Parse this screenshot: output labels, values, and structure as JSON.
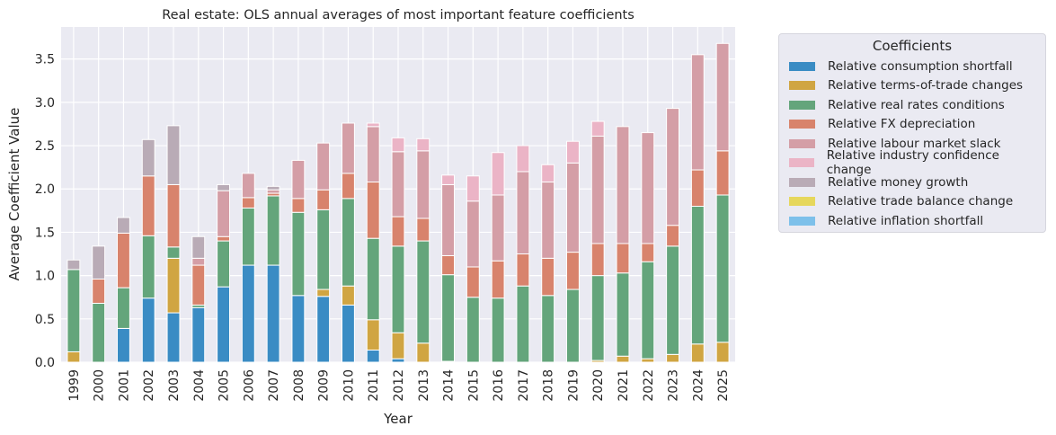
{
  "chart_data": {
    "type": "bar",
    "stacked": true,
    "title": "Real estate: OLS annual averages of most important feature coefficients",
    "xlabel": "Year",
    "ylabel": "Average Coefficient Value",
    "ylim": [
      0,
      3.87
    ],
    "yticks": [
      "0.0",
      "0.5",
      "1.0",
      "1.5",
      "2.0",
      "2.5",
      "3.0",
      "3.5"
    ],
    "grid": true,
    "legend_title": "Coefficients",
    "legend_placement": "outside-top-right",
    "categories": [
      "1999",
      "2000",
      "2001",
      "2002",
      "2003",
      "2004",
      "2005",
      "2006",
      "2007",
      "2008",
      "2009",
      "2010",
      "2011",
      "2012",
      "2013",
      "2014",
      "2015",
      "2016",
      "2017",
      "2018",
      "2019",
      "2020",
      "2021",
      "2022",
      "2023",
      "2024",
      "2025"
    ],
    "series": [
      {
        "name": "Relative consumption shortfall",
        "color": "#3a8cc4",
        "values": [
          0,
          0,
          0.39,
          0.74,
          0.57,
          0.63,
          0.87,
          1.12,
          1.12,
          0.77,
          0.76,
          0.66,
          0.14,
          0.04,
          0,
          0,
          0,
          0,
          0,
          0,
          0,
          0,
          0,
          0,
          0,
          0,
          0
        ]
      },
      {
        "name": "Relative terms-of-trade changes",
        "color": "#d0a542",
        "values": [
          0.12,
          0,
          0,
          0,
          0.63,
          0,
          0,
          0,
          0,
          0,
          0.08,
          0.22,
          0.35,
          0.3,
          0.22,
          0.01,
          0,
          0,
          0,
          0,
          0,
          0.02,
          0.07,
          0.04,
          0.09,
          0.21,
          0.23
        ]
      },
      {
        "name": "Relative real rates conditions",
        "color": "#64a57b",
        "values": [
          0.95,
          0.68,
          0.47,
          0.72,
          0.13,
          0.03,
          0.53,
          0.66,
          0.8,
          0.96,
          0.92,
          1.01,
          0.94,
          1.0,
          1.18,
          1.0,
          0.75,
          0.74,
          0.88,
          0.77,
          0.84,
          0.98,
          0.96,
          1.12,
          1.25,
          1.59,
          1.7
        ]
      },
      {
        "name": "Relative FX depreciation",
        "color": "#d8836c",
        "values": [
          0,
          0.28,
          0.63,
          0.69,
          0.72,
          0.46,
          0.05,
          0.12,
          0.03,
          0.16,
          0.23,
          0.29,
          0.65,
          0.34,
          0.26,
          0.22,
          0.35,
          0.43,
          0.37,
          0.43,
          0.43,
          0.37,
          0.34,
          0.21,
          0.24,
          0.42,
          0.51
        ]
      },
      {
        "name": "Relative labour market slack",
        "color": "#d49ea6",
        "values": [
          0,
          0,
          0,
          0,
          0,
          0.08,
          0.53,
          0.28,
          0.04,
          0.44,
          0.54,
          0.58,
          0.64,
          0.75,
          0.78,
          0.82,
          0.76,
          0.76,
          0.95,
          0.88,
          1.03,
          1.24,
          1.35,
          1.28,
          1.35,
          1.33,
          1.24
        ]
      },
      {
        "name": "Relative industry confidence change",
        "color": "#ebb4c6",
        "values": [
          0,
          0,
          0,
          0,
          0,
          0,
          0,
          0,
          0,
          0,
          0,
          0,
          0.04,
          0.16,
          0.14,
          0.11,
          0.29,
          0.49,
          0.3,
          0.2,
          0.25,
          0.17,
          0,
          0,
          0,
          0,
          0
        ]
      },
      {
        "name": "Relative money growth",
        "color": "#b9abb6",
        "values": [
          0.11,
          0.38,
          0.18,
          0.42,
          0.68,
          0.25,
          0.07,
          0,
          0.04,
          0,
          0,
          0,
          0,
          0,
          0,
          0,
          0,
          0,
          0,
          0,
          0,
          0,
          0,
          0,
          0,
          0,
          0
        ]
      },
      {
        "name": "Relative trade balance change",
        "color": "#e6d75c",
        "values": [
          0,
          0,
          0,
          0,
          0,
          0,
          0,
          0,
          0,
          0,
          0,
          0,
          0,
          0,
          0,
          0,
          0,
          0,
          0,
          0,
          0,
          0,
          0,
          0,
          0,
          0,
          0
        ]
      },
      {
        "name": "Relative inflation shortfall",
        "color": "#7dc0ea",
        "values": [
          0,
          0,
          0,
          0,
          0,
          0,
          0,
          0,
          0,
          0,
          0,
          0,
          0,
          0,
          0,
          0,
          0,
          0,
          0,
          0,
          0,
          0,
          0,
          0,
          0,
          0,
          0
        ]
      }
    ]
  }
}
